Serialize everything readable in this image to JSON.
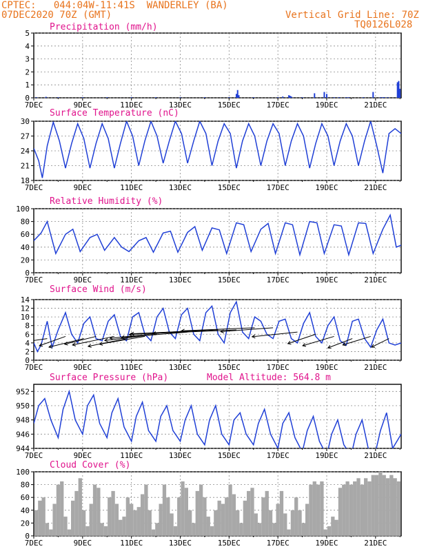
{
  "header": {
    "line1": "CPTEC:   044:04W-11:41S  WANDERLEY (BA)",
    "line2": "07DEC2020 70Z (GMT)",
    "right1": "Vertical Grid Line: 70Z",
    "right2": "TQ0126L028"
  },
  "colors": {
    "header": "#e8731c",
    "title": "#e0138c",
    "line": "#1f3fd6",
    "cloud": "#a8a8a8",
    "grid": "#888888"
  },
  "x_ticks": [
    "7DEC",
    "9DEC",
    "11DEC",
    "13DEC",
    "15DEC",
    "17DEC",
    "19DEC",
    "21DEC"
  ],
  "chart_data": [
    {
      "id": "precip",
      "type": "bar",
      "title": "Precipitation (mm/h)",
      "ylim": [
        0,
        5
      ],
      "yticks": [
        "0",
        "1",
        "2",
        "3",
        "4",
        "5"
      ],
      "x": [
        0.1,
        0.5,
        1.0,
        2.0,
        3.0,
        4.0,
        5.0,
        6.0,
        7.0,
        8.0,
        8.3,
        8.35,
        8.4,
        9.0,
        10.0,
        10.2,
        10.45,
        10.5,
        10.55,
        11.0,
        11.5,
        11.9,
        12.0,
        12.3,
        12.5,
        12.8,
        12.9,
        13.5,
        13.9,
        14.2,
        14.3,
        14.35,
        14.5,
        14.9,
        14.95,
        15.0,
        15.4
      ],
      "values": [
        0.05,
        0.08,
        0.05,
        0.05,
        0.05,
        0.05,
        0.05,
        0.05,
        0.05,
        0.05,
        0.3,
        0.6,
        0.2,
        0.05,
        0.05,
        0.1,
        0.2,
        0.15,
        0.1,
        0.05,
        0.35,
        0.45,
        0.3,
        0.05,
        0.05,
        0.05,
        0.05,
        0.05,
        0.45,
        0.05,
        0.05,
        0.05,
        0.05,
        1.2,
        1.3,
        0.7,
        0.05
      ]
    },
    {
      "id": "temp",
      "type": "line",
      "title": "Surface Temperature (nC)",
      "ylim": [
        18,
        30
      ],
      "yticks": [
        "18",
        "21",
        "24",
        "27",
        "30"
      ],
      "x": [
        0.0,
        0.2,
        0.35,
        0.55,
        0.8,
        1.05,
        1.3,
        1.55,
        1.8,
        2.05,
        2.3,
        2.55,
        2.8,
        3.05,
        3.3,
        3.55,
        3.8,
        4.05,
        4.3,
        4.55,
        4.8,
        5.05,
        5.3,
        5.55,
        5.8,
        6.05,
        6.3,
        6.55,
        6.8,
        7.05,
        7.3,
        7.55,
        7.8,
        8.05,
        8.3,
        8.55,
        8.8,
        9.05,
        9.3,
        9.55,
        9.8,
        10.05,
        10.3,
        10.55,
        10.8,
        11.05,
        11.3,
        11.55,
        11.8,
        12.05,
        12.3,
        12.55,
        12.8,
        13.05,
        13.3,
        13.55,
        13.8,
        14.05,
        14.3,
        14.55,
        14.8,
        15.05
      ],
      "values": [
        24.5,
        22.0,
        18.5,
        25.0,
        29.8,
        26.0,
        20.5,
        25.5,
        29.5,
        26.5,
        20.5,
        25.5,
        29.5,
        26.5,
        20.5,
        25.5,
        30.0,
        27.0,
        21.0,
        26.0,
        30.0,
        27.0,
        21.5,
        26.0,
        30.0,
        27.5,
        21.5,
        26.0,
        30.0,
        27.5,
        21.0,
        26.0,
        29.5,
        27.5,
        20.5,
        26.0,
        29.5,
        27.0,
        21.0,
        26.0,
        29.5,
        27.5,
        21.0,
        26.0,
        29.5,
        27.0,
        20.5,
        25.5,
        29.5,
        27.0,
        21.0,
        26.0,
        29.5,
        27.0,
        21.0,
        26.0,
        30.0,
        25.0,
        19.5,
        27.5,
        28.5,
        27.5
      ]
    },
    {
      "id": "rh",
      "type": "line",
      "title": "Relative Humidity (%)",
      "ylim": [
        0,
        100
      ],
      "yticks": [
        "0",
        "20",
        "40",
        "60",
        "80",
        "100"
      ],
      "x": [
        0.0,
        0.3,
        0.55,
        0.9,
        1.3,
        1.6,
        1.9,
        2.3,
        2.6,
        2.9,
        3.3,
        3.6,
        3.9,
        4.3,
        4.6,
        4.9,
        5.3,
        5.6,
        5.9,
        6.3,
        6.6,
        6.9,
        7.3,
        7.6,
        7.9,
        8.3,
        8.6,
        8.9,
        9.3,
        9.6,
        9.9,
        10.3,
        10.6,
        10.9,
        11.3,
        11.6,
        11.9,
        12.3,
        12.6,
        12.9,
        13.3,
        13.6,
        13.9,
        14.3,
        14.6,
        14.85,
        15.05
      ],
      "values": [
        50,
        62,
        80,
        30,
        60,
        68,
        33,
        55,
        60,
        35,
        55,
        40,
        33,
        50,
        55,
        32,
        62,
        65,
        32,
        63,
        72,
        35,
        70,
        67,
        30,
        78,
        75,
        33,
        68,
        77,
        30,
        78,
        75,
        28,
        80,
        78,
        30,
        75,
        73,
        28,
        78,
        77,
        30,
        68,
        90,
        40,
        43
      ]
    },
    {
      "id": "wind",
      "type": "line",
      "title": "Surface Wind (m/s)",
      "ylim": [
        0,
        14
      ],
      "yticks": [
        "0",
        "2",
        "4",
        "6",
        "8",
        "10",
        "12",
        "14"
      ],
      "x": [
        0.0,
        0.15,
        0.3,
        0.55,
        0.75,
        1.0,
        1.3,
        1.55,
        1.8,
        2.05,
        2.3,
        2.55,
        2.8,
        3.05,
        3.3,
        3.55,
        3.8,
        4.05,
        4.3,
        4.55,
        4.8,
        5.05,
        5.3,
        5.55,
        5.8,
        6.05,
        6.3,
        6.55,
        6.8,
        7.05,
        7.3,
        7.55,
        7.8,
        8.05,
        8.3,
        8.55,
        8.8,
        9.05,
        9.3,
        9.55,
        9.8,
        10.05,
        10.3,
        10.55,
        10.8,
        11.05,
        11.3,
        11.55,
        11.8,
        12.05,
        12.3,
        12.55,
        12.8,
        13.05,
        13.3,
        13.55,
        13.8,
        14.05,
        14.3,
        14.55,
        14.8,
        15.05
      ],
      "values": [
        4.0,
        2.0,
        3.5,
        9.0,
        3.0,
        7.0,
        11.0,
        6.0,
        4.0,
        8.5,
        10.0,
        5.0,
        4.5,
        9.0,
        10.5,
        5.5,
        4.5,
        10.0,
        11.0,
        6.0,
        4.5,
        10.0,
        12.0,
        6.5,
        5.0,
        10.5,
        12.0,
        6.0,
        4.5,
        11.0,
        12.5,
        6.0,
        4.0,
        11.0,
        13.5,
        6.5,
        5.0,
        10.0,
        9.0,
        6.0,
        5.0,
        9.0,
        9.5,
        5.0,
        4.0,
        8.5,
        11.0,
        5.5,
        4.0,
        8.0,
        10.0,
        4.5,
        3.5,
        9.0,
        9.5,
        5.0,
        3.0,
        7.0,
        9.5,
        4.0,
        3.5,
        4.0
      ],
      "arrows": {
        "x": [
          0.55,
          1.3,
          2.05,
          2.55,
          3.3,
          3.8,
          4.55,
          5.05,
          5.55,
          6.3,
          7.05,
          7.55,
          8.3,
          9.05,
          9.8,
          10.8,
          11.55,
          12.3,
          13.05,
          13.8,
          14.55
        ],
        "u": [
          -2.8,
          -1.5,
          -2.0,
          -1.8,
          -2.4,
          -2.2,
          -2.6,
          -3.0,
          -3.4,
          -3.8,
          -4.4,
          -5.0,
          -4.8,
          -4.2,
          -3.0,
          -2.6,
          -1.6,
          -1.8,
          -1.4,
          -1.6,
          -1.0
        ],
        "v": [
          -1.8,
          -2.4,
          -2.2,
          -2.0,
          -2.2,
          -2.0,
          -2.0,
          -1.6,
          -1.6,
          -1.4,
          -1.2,
          -1.0,
          -0.9,
          -0.8,
          -1.0,
          -1.2,
          -2.4,
          -2.4,
          -2.4,
          -2.2,
          -2.2
        ],
        "y": [
          5.0,
          5.5,
          5.0,
          5.5,
          5.5,
          5.0,
          5.5,
          6.0,
          6.5,
          6.5,
          7.0,
          7.0,
          7.0,
          7.5,
          7.5,
          6.5,
          6.0,
          5.5,
          5.0,
          5.5,
          5.0
        ]
      }
    },
    {
      "id": "pres",
      "type": "line",
      "title": "Surface Pressure (hPa)",
      "annotation": "Model Altitude: 564.8 m",
      "ylim": [
        944,
        953
      ],
      "yticks": [
        "944",
        "946",
        "948",
        "950",
        "952"
      ],
      "x": [
        0.0,
        0.2,
        0.45,
        0.7,
        1.0,
        1.2,
        1.45,
        1.7,
        2.0,
        2.2,
        2.45,
        2.7,
        3.0,
        3.2,
        3.45,
        3.7,
        4.0,
        4.2,
        4.45,
        4.7,
        5.0,
        5.2,
        5.45,
        5.7,
        6.0,
        6.2,
        6.45,
        6.7,
        7.0,
        7.2,
        7.45,
        7.7,
        8.0,
        8.2,
        8.45,
        8.7,
        9.0,
        9.2,
        9.45,
        9.7,
        10.0,
        10.2,
        10.45,
        10.7,
        11.0,
        11.2,
        11.45,
        11.7,
        12.0,
        12.2,
        12.45,
        12.7,
        13.0,
        13.2,
        13.45,
        13.7,
        14.0,
        14.2,
        14.45,
        14.7,
        15.05
      ],
      "values": [
        947.5,
        950.0,
        951.0,
        948.0,
        945.5,
        949.5,
        952.0,
        948.0,
        946.0,
        950.0,
        951.5,
        947.5,
        945.5,
        949.0,
        951.0,
        947.0,
        945.0,
        948.5,
        950.5,
        946.5,
        945.0,
        948.5,
        950.0,
        946.5,
        945.0,
        948.0,
        950.0,
        946.0,
        944.5,
        948.0,
        950.0,
        946.0,
        944.5,
        948.0,
        949.0,
        946.0,
        944.5,
        947.5,
        949.5,
        946.0,
        944.0,
        947.5,
        949.0,
        945.5,
        943.5,
        946.5,
        948.5,
        945.0,
        943.0,
        946.0,
        948.0,
        944.5,
        943.0,
        946.0,
        948.0,
        944.0,
        943.5,
        946.5,
        949.0,
        944.0,
        946.0
      ]
    },
    {
      "id": "cloud",
      "type": "bar",
      "title": "Cloud Cover (%)",
      "ylim": [
        0,
        100
      ],
      "yticks": [
        "0",
        "20",
        "40",
        "60",
        "80",
        "100"
      ],
      "x": [
        0.1,
        0.25,
        0.4,
        0.55,
        0.7,
        0.85,
        1.0,
        1.15,
        1.3,
        1.45,
        1.6,
        1.75,
        1.9,
        2.05,
        2.2,
        2.35,
        2.5,
        2.65,
        2.8,
        2.95,
        3.1,
        3.25,
        3.4,
        3.55,
        3.7,
        3.85,
        4.0,
        4.15,
        4.3,
        4.45,
        4.6,
        4.75,
        4.9,
        5.05,
        5.2,
        5.35,
        5.5,
        5.65,
        5.8,
        5.95,
        6.1,
        6.25,
        6.4,
        6.55,
        6.7,
        6.85,
        7.0,
        7.15,
        7.3,
        7.45,
        7.6,
        7.75,
        7.9,
        8.05,
        8.2,
        8.35,
        8.5,
        8.65,
        8.8,
        8.95,
        9.1,
        9.25,
        9.4,
        9.55,
        9.7,
        9.85,
        10.0,
        10.15,
        10.3,
        10.45,
        10.6,
        10.75,
        10.9,
        11.05,
        11.2,
        11.35,
        11.5,
        11.65,
        11.8,
        11.95,
        12.1,
        12.25,
        12.4,
        12.55,
        12.7,
        12.85,
        13.0,
        13.15,
        13.3,
        13.45,
        13.6,
        13.75,
        13.9,
        14.05,
        14.2,
        14.35,
        14.5,
        14.65,
        14.8,
        14.95
      ],
      "values": [
        40,
        55,
        60,
        20,
        10,
        50,
        80,
        85,
        30,
        10,
        55,
        70,
        90,
        40,
        15,
        50,
        80,
        75,
        20,
        15,
        60,
        70,
        50,
        25,
        30,
        60,
        50,
        40,
        45,
        65,
        80,
        40,
        10,
        20,
        50,
        80,
        60,
        35,
        15,
        60,
        85,
        75,
        40,
        20,
        70,
        80,
        60,
        30,
        15,
        40,
        55,
        50,
        60,
        80,
        65,
        40,
        20,
        55,
        70,
        75,
        35,
        20,
        60,
        70,
        40,
        20,
        50,
        70,
        35,
        10,
        40,
        60,
        40,
        20,
        50,
        80,
        85,
        80,
        85,
        10,
        15,
        30,
        25,
        75,
        80,
        85,
        80,
        85,
        90,
        80,
        90,
        85,
        95,
        95,
        100,
        95,
        90,
        95,
        90,
        85
      ]
    }
  ]
}
